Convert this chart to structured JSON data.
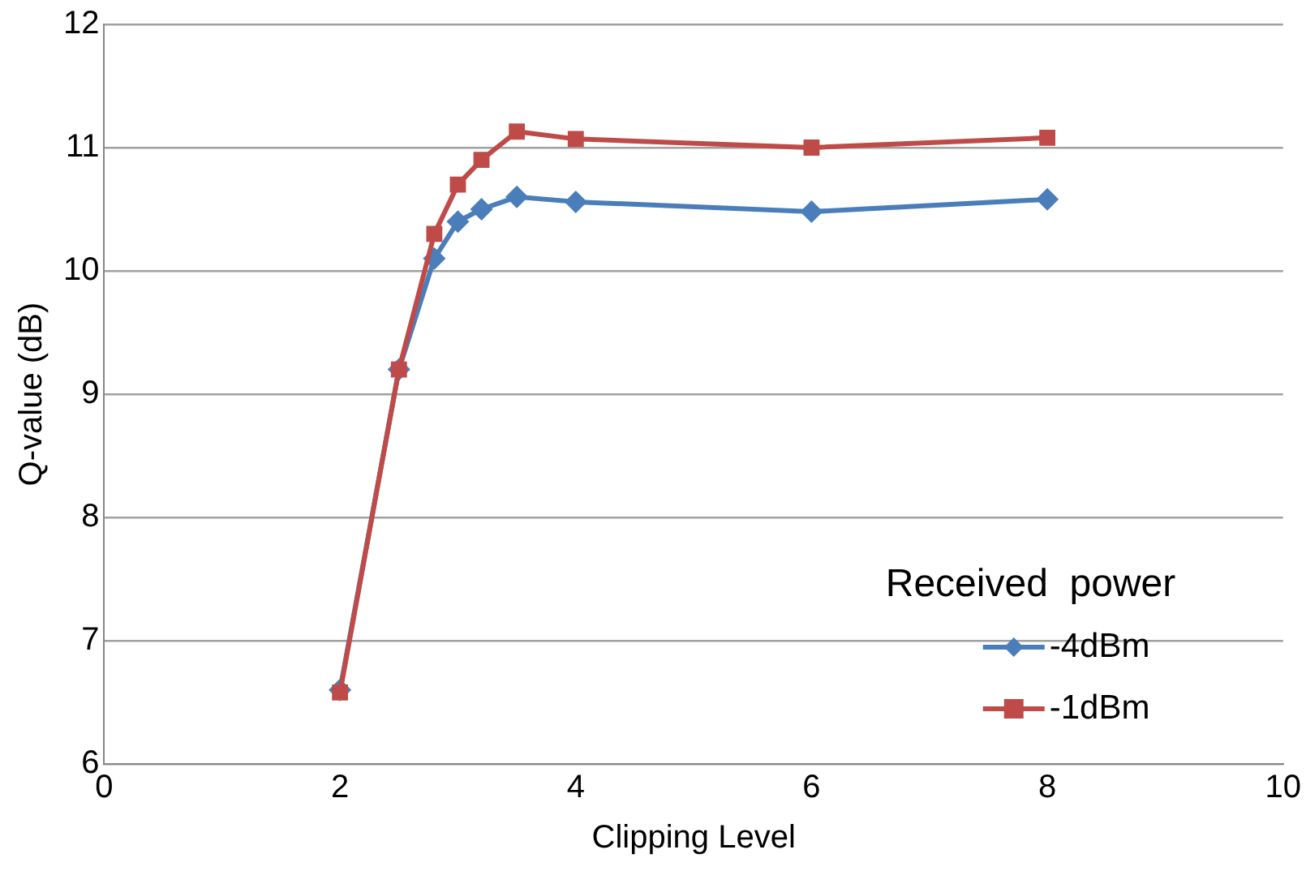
{
  "chart_data": {
    "type": "line",
    "xlabel": "Clipping Level",
    "ylabel": "Q-value (dB)",
    "legend_title": "Received  power",
    "legend": "bottom right",
    "grid": "y",
    "xlim": [
      0,
      10
    ],
    "xticks": [
      0,
      2,
      4,
      6,
      8,
      10
    ],
    "ylim": [
      6,
      12
    ],
    "yticks": [
      6,
      7,
      8,
      9,
      10,
      11,
      12
    ],
    "series": [
      {
        "name": "-4dBm",
        "color": "#4a7ebb",
        "marker": "diamond",
        "x": [
          2,
          2.5,
          2.8,
          3,
          3.2,
          3.5,
          4,
          6,
          8
        ],
        "values": [
          6.6,
          9.2,
          10.1,
          10.4,
          10.5,
          10.6,
          10.56,
          10.48,
          10.58
        ]
      },
      {
        "name": "-1dBm",
        "color": "#be4b48",
        "marker": "square",
        "x": [
          2,
          2.5,
          2.8,
          3,
          3.2,
          3.5,
          4,
          6,
          8
        ],
        "values": [
          6.58,
          9.2,
          10.3,
          10.7,
          10.9,
          11.13,
          11.07,
          11.0,
          11.08
        ]
      }
    ]
  }
}
